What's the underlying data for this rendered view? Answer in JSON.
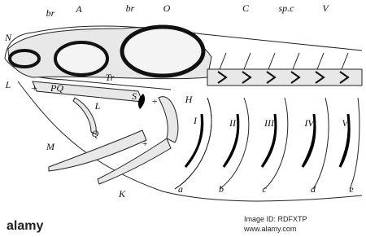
{
  "labels": {
    "N": "N",
    "br1": "br",
    "A": "A",
    "br2": "br",
    "O": "O",
    "C": "C",
    "spc": "sp.c",
    "V1": "V",
    "L1": "L",
    "plus1": "+",
    "PQ": "PQ",
    "Tr": "Tr",
    "S": "S",
    "plus2": "+",
    "H": "H",
    "I": "I",
    "II": "II",
    "III": "III",
    "IV": "IV",
    "V2": "V",
    "L2": "L",
    "Q": "Q",
    "plus3": "+",
    "M": "M",
    "K": "K",
    "a": "a",
    "b": "b",
    "c": "c",
    "d": "d",
    "e": "e"
  },
  "footer": {
    "logo": "alamy",
    "image_id": "Image ID: RDFXTP",
    "url": "www.alamy.com"
  }
}
